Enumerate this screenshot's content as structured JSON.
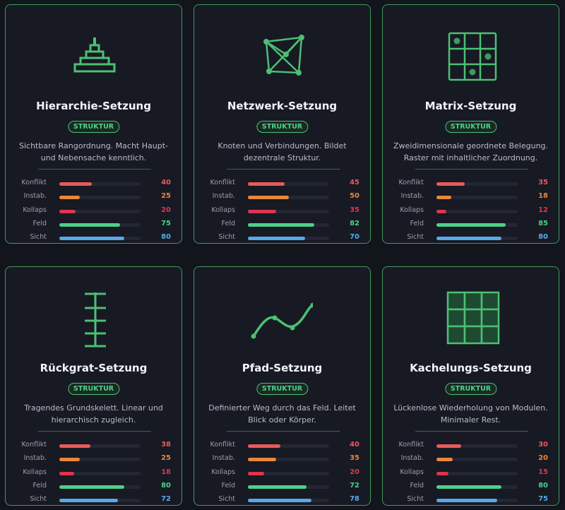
{
  "value_max": 100,
  "stat_colors": [
    "#e85a5a",
    "#e8873a",
    "#e0344e",
    "#4cd08a",
    "#5aa8e6"
  ],
  "cards": [
    {
      "title": "Hierarchie-Setzung",
      "tag": "STRUKTUR",
      "description": [
        "Sichtbare Rangordnung. Macht Haupt-",
        "und Nebensache kenntlich."
      ],
      "stats": [
        {
          "label": "Konflikt",
          "value": 40
        },
        {
          "label": "Instab.",
          "value": 25
        },
        {
          "label": "Kollaps",
          "value": 20
        },
        {
          "label": "Feld",
          "value": 75
        },
        {
          "label": "Sicht",
          "value": 80
        }
      ]
    },
    {
      "title": "Netzwerk-Setzung",
      "tag": "STRUKTUR",
      "description": [
        "Knoten und Verbindungen. Bildet",
        "dezentrale Struktur."
      ],
      "stats": [
        {
          "label": "Konflikt",
          "value": 45
        },
        {
          "label": "Instab.",
          "value": 50
        },
        {
          "label": "Kollaps",
          "value": 35
        },
        {
          "label": "Feld",
          "value": 82
        },
        {
          "label": "Sicht",
          "value": 70
        }
      ]
    },
    {
      "title": "Matrix-Setzung",
      "tag": "STRUKTUR",
      "description": [
        "Zweidimensionale geordnete Belegung.",
        "Raster mit inhaltlicher Zuordnung."
      ],
      "stats": [
        {
          "label": "Konflikt",
          "value": 35
        },
        {
          "label": "Instab.",
          "value": 18
        },
        {
          "label": "Kollaps",
          "value": 12
        },
        {
          "label": "Feld",
          "value": 85
        },
        {
          "label": "Sicht",
          "value": 80
        }
      ]
    },
    {
      "title": "Rückgrat-Setzung",
      "tag": "STRUKTUR",
      "description": [
        "Tragendes Grundskelett. Linear und",
        "hierarchisch zugleich."
      ],
      "stats": [
        {
          "label": "Konflikt",
          "value": 38
        },
        {
          "label": "Instab.",
          "value": 25
        },
        {
          "label": "Kollaps",
          "value": 18
        },
        {
          "label": "Feld",
          "value": 80
        },
        {
          "label": "Sicht",
          "value": 72
        }
      ]
    },
    {
      "title": "Pfad-Setzung",
      "tag": "STRUKTUR",
      "description": [
        "Definierter Weg durch das Feld. Leitet",
        "Blick oder Körper."
      ],
      "stats": [
        {
          "label": "Konflikt",
          "value": 40
        },
        {
          "label": "Instab.",
          "value": 35
        },
        {
          "label": "Kollaps",
          "value": 20
        },
        {
          "label": "Feld",
          "value": 72
        },
        {
          "label": "Sicht",
          "value": 78
        }
      ]
    },
    {
      "title": "Kachelungs-Setzung",
      "tag": "STRUKTUR",
      "description": [
        "Lückenlose Wiederholung von Modulen.",
        "Minimaler Rest."
      ],
      "stats": [
        {
          "label": "Konflikt",
          "value": 30
        },
        {
          "label": "Instab.",
          "value": 20
        },
        {
          "label": "Kollaps",
          "value": 15
        },
        {
          "label": "Feld",
          "value": 80
        },
        {
          "label": "Sicht",
          "value": 75
        }
      ]
    }
  ]
}
